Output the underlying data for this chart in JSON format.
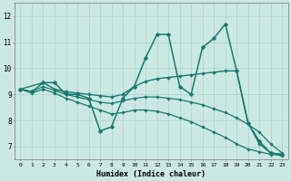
{
  "xlabel": "Humidex (Indice chaleur)",
  "ylabel": "",
  "bg_color": "#cce8e4",
  "grid_color": "#aad4cf",
  "line_color": "#1a7a6e",
  "xlim": [
    -0.5,
    23.5
  ],
  "ylim": [
    6.5,
    12.5
  ],
  "xticks": [
    0,
    1,
    2,
    3,
    4,
    5,
    6,
    7,
    8,
    9,
    10,
    11,
    12,
    13,
    14,
    15,
    16,
    17,
    18,
    19,
    20,
    21,
    22,
    23
  ],
  "yticks": [
    7,
    8,
    9,
    10,
    11,
    12
  ],
  "series": [
    {
      "x": [
        0,
        1,
        2,
        3,
        4,
        5,
        6,
        7,
        8,
        9,
        10,
        11,
        12,
        13,
        14,
        15,
        16,
        17,
        18,
        19,
        20,
        21,
        22,
        23
      ],
      "y": [
        9.2,
        9.1,
        9.45,
        9.45,
        9.0,
        9.0,
        8.85,
        7.6,
        7.75,
        8.85,
        9.3,
        10.4,
        11.3,
        11.3,
        9.3,
        9.0,
        10.8,
        11.15,
        11.7,
        9.9,
        7.9,
        7.2,
        6.75,
        6.7
      ],
      "marker": "D",
      "markersize": 2.5,
      "linewidth": 1.1
    },
    {
      "x": [
        0,
        2,
        3,
        4,
        5,
        6,
        7,
        8,
        9,
        10,
        11,
        12,
        13,
        14,
        15,
        16,
        17,
        18,
        19,
        20,
        21,
        22,
        23
      ],
      "y": [
        9.2,
        9.45,
        9.2,
        9.1,
        9.05,
        9.0,
        8.95,
        8.9,
        9.0,
        9.3,
        9.5,
        9.6,
        9.65,
        9.7,
        9.75,
        9.8,
        9.85,
        9.9,
        9.9,
        7.9,
        7.1,
        6.75,
        6.7
      ],
      "marker": "D",
      "markersize": 2.0,
      "linewidth": 1.0
    },
    {
      "x": [
        0,
        1,
        2,
        3,
        4,
        5,
        6,
        7,
        8,
        9,
        10,
        11,
        12,
        13,
        14,
        15,
        16,
        17,
        18,
        19,
        20,
        21,
        22,
        23
      ],
      "y": [
        9.2,
        9.1,
        9.3,
        9.15,
        9.0,
        8.9,
        8.8,
        8.7,
        8.65,
        8.75,
        8.85,
        8.9,
        8.9,
        8.85,
        8.8,
        8.7,
        8.6,
        8.45,
        8.3,
        8.1,
        7.85,
        7.55,
        7.1,
        6.75
      ],
      "marker": "D",
      "markersize": 1.8,
      "linewidth": 0.9
    },
    {
      "x": [
        0,
        1,
        2,
        3,
        4,
        5,
        6,
        7,
        8,
        9,
        10,
        11,
        12,
        13,
        14,
        15,
        16,
        17,
        18,
        19,
        20,
        21,
        22,
        23
      ],
      "y": [
        9.2,
        9.05,
        9.2,
        9.05,
        8.85,
        8.7,
        8.55,
        8.4,
        8.25,
        8.3,
        8.4,
        8.4,
        8.35,
        8.25,
        8.1,
        7.95,
        7.75,
        7.55,
        7.35,
        7.1,
        6.9,
        6.8,
        6.7,
        6.65
      ],
      "marker": "D",
      "markersize": 1.8,
      "linewidth": 0.9
    }
  ]
}
